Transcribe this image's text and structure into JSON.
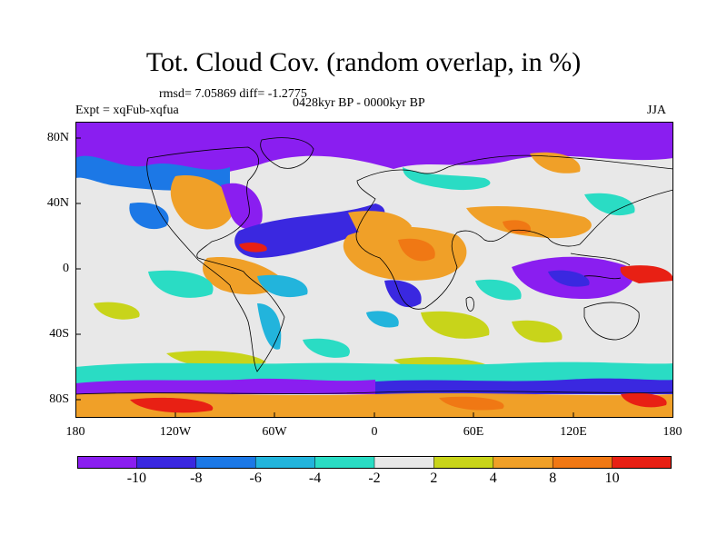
{
  "header": {
    "title": "Tot. Cloud Cov. (random overlap, in %)",
    "stats": "rmsd= 7.05869 diff= -1.2775",
    "period": "0428kyr BP - 0000kyr BP",
    "experiment": "Expt = xqFub-xqfua",
    "season": "JJA"
  },
  "axes": {
    "lat_labels": [
      "80N",
      "40N",
      "0",
      "40S",
      "80S"
    ],
    "lon_labels": [
      "180",
      "120W",
      "60W",
      "0",
      "60E",
      "120E",
      "180"
    ]
  },
  "colorbar": {
    "labels": [
      "-10",
      "-8",
      "-6",
      "-4",
      "-2",
      "2",
      "4",
      "8",
      "10"
    ],
    "colors": [
      "#8a1ef0",
      "#3a28e0",
      "#1c78e6",
      "#22b4dc",
      "#2adcc4",
      "#e8e8e8",
      "#c8d41a",
      "#f0a028",
      "#f07814",
      "#e82014"
    ]
  }
}
